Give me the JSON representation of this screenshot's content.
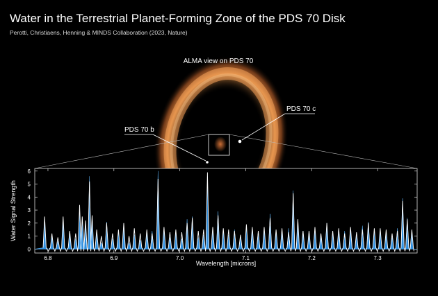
{
  "title": "Water in the Terrestrial Planet-Forming Zone of the PDS 70 Disk",
  "subtitle": "Perotti, Christiaens, Henning & MINDS Collaboration (2023, Nature)",
  "image": {
    "caption": "ALMA view on PDS 70",
    "planet_b_label": "PDS 70 b",
    "planet_c_label": "PDS 70 c"
  },
  "colors": {
    "ring": "#f29a4a",
    "model_fill": "#2f8fe0",
    "observed_line": "#ffffff",
    "background": "#000000"
  },
  "chart_data": {
    "type": "line",
    "xlabel": "Wavelength [microns]",
    "ylabel": "Water Signal Strength",
    "xlim": [
      6.78,
      7.36
    ],
    "ylim": [
      -0.3,
      6.2
    ],
    "xticks": [
      "6.8",
      "6.9",
      "7.0",
      "7.1",
      "7.2",
      "7.3"
    ],
    "yticks": [
      "0",
      "1",
      "2",
      "3",
      "4",
      "5",
      "6"
    ],
    "series": [
      {
        "style": "filled",
        "x": [
          6.795,
          6.806,
          6.815,
          6.823,
          6.833,
          6.842,
          6.848,
          6.852,
          6.857,
          6.863,
          6.867,
          6.874,
          6.881,
          6.889,
          6.898,
          6.907,
          6.915,
          6.923,
          6.931,
          6.94,
          6.95,
          6.958,
          6.967,
          6.976,
          6.985,
          6.994,
          7.003,
          7.011,
          7.019,
          7.028,
          7.036,
          7.042,
          7.05,
          7.058,
          7.066,
          7.074,
          7.083,
          7.092,
          7.101,
          7.11,
          7.119,
          7.128,
          7.137,
          7.146,
          7.155,
          7.165,
          7.172,
          7.179,
          7.187,
          7.196,
          7.205,
          7.214,
          7.223,
          7.232,
          7.241,
          7.25,
          7.259,
          7.268,
          7.277,
          7.286,
          7.295,
          7.304,
          7.313,
          7.322,
          7.33,
          7.338,
          7.345,
          7.352
        ],
        "y": [
          2.2,
          1.0,
          0.6,
          2.3,
          1.1,
          0.8,
          3.1,
          2.3,
          1.9,
          5.6,
          2.3,
          1.2,
          0.5,
          2.1,
          0.8,
          1.3,
          1.6,
          0.5,
          1.1,
          0.7,
          1.2,
          1.4,
          6.0,
          1.5,
          0.9,
          1.2,
          0.8,
          2.3,
          2.5,
          0.9,
          1.1,
          5.6,
          1.3,
          2.9,
          1.3,
          1.1,
          1.5,
          1.0,
          1.7,
          1.6,
          1.4,
          1.5,
          2.7,
          1.2,
          1.3,
          1.6,
          4.5,
          2.0,
          1.4,
          1.1,
          1.6,
          0.9,
          2.0,
          1.1,
          1.2,
          1.4,
          1.4,
          1.0,
          1.8,
          2.1,
          1.3,
          1.5,
          1.2,
          0.9,
          1.6,
          3.9,
          2.4,
          1.2
        ]
      },
      {
        "style": "line",
        "x": [
          6.795,
          6.806,
          6.815,
          6.823,
          6.833,
          6.842,
          6.848,
          6.852,
          6.857,
          6.863,
          6.867,
          6.874,
          6.881,
          6.889,
          6.898,
          6.907,
          6.915,
          6.923,
          6.931,
          6.94,
          6.95,
          6.958,
          6.967,
          6.976,
          6.985,
          6.994,
          7.003,
          7.011,
          7.019,
          7.028,
          7.036,
          7.042,
          7.05,
          7.058,
          7.066,
          7.074,
          7.083,
          7.092,
          7.101,
          7.11,
          7.119,
          7.128,
          7.137,
          7.146,
          7.155,
          7.165,
          7.172,
          7.179,
          7.187,
          7.196,
          7.205,
          7.214,
          7.223,
          7.232,
          7.241,
          7.25,
          7.259,
          7.268,
          7.277,
          7.286,
          7.295,
          7.304,
          7.313,
          7.322,
          7.33,
          7.338,
          7.345,
          7.352
        ],
        "y": [
          2.5,
          1.2,
          0.9,
          2.5,
          1.4,
          1.2,
          3.4,
          2.5,
          2.2,
          5.2,
          2.6,
          1.5,
          1.0,
          2.0,
          1.2,
          1.5,
          2.0,
          1.0,
          1.6,
          1.2,
          1.5,
          1.2,
          5.4,
          1.7,
          1.3,
          1.5,
          1.3,
          2.0,
          2.4,
          1.4,
          1.5,
          5.9,
          1.7,
          2.6,
          1.6,
          1.5,
          1.4,
          1.1,
          1.9,
          1.7,
          1.4,
          1.7,
          2.4,
          1.5,
          1.6,
          1.3,
          4.3,
          2.3,
          1.4,
          1.4,
          1.7,
          1.2,
          2.0,
          1.4,
          1.6,
          1.2,
          1.7,
          1.3,
          1.5,
          2.0,
          1.6,
          1.6,
          1.5,
          1.2,
          1.4,
          3.7,
          2.3,
          1.5
        ]
      }
    ]
  }
}
